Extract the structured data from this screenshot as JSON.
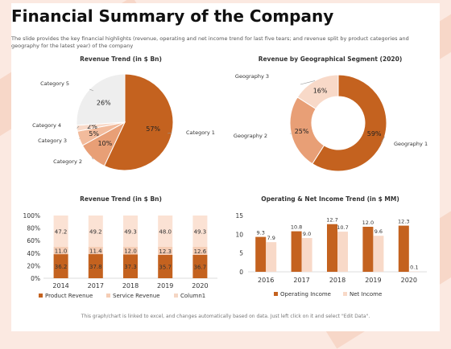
{
  "title": "Financial Summary of the Company",
  "subtitle": "The slide provides the key financial highlights (revenue, operating and net income trend for last five tears; and revenue split by product categories and geography for the latest year) of the company",
  "footer": "This graph/chart is linked to excel, and changes automatically based on data. Just left click on it and select \"Edit Data\".",
  "colors": {
    "orange": "#c4621f",
    "mid": "#e89f76",
    "light": "#f5cdb5",
    "pale": "#fbe2d4",
    "grey": "#eeeeee"
  },
  "chart_data": [
    {
      "type": "pie",
      "title": "Revenue Trend (in $ Bn)",
      "slices": [
        {
          "label": "Category 1",
          "value": 57,
          "display": "57%",
          "color": "#c4621f"
        },
        {
          "label": "Category 2",
          "value": 10,
          "display": "10%",
          "color": "#e89f76"
        },
        {
          "label": "Category 3",
          "value": 5,
          "display": "5%",
          "color": "#f2bb9c"
        },
        {
          "label": "Category 4",
          "value": 2,
          "display": "2%",
          "color": "#f8d9c8"
        },
        {
          "label": "Category 5",
          "value": 26,
          "display": "26%",
          "color": "#eeeeee"
        }
      ]
    },
    {
      "type": "pie",
      "title": "Revenue by Geographical Segment (2020)",
      "donut": true,
      "slices": [
        {
          "label": "Geography 1",
          "value": 59,
          "display": "59%",
          "color": "#c4621f"
        },
        {
          "label": "Geography 2",
          "value": 25,
          "display": "25%",
          "color": "#e89f76"
        },
        {
          "label": "Geography 3",
          "value": 16,
          "display": "16%",
          "color": "#f8d9c8"
        }
      ]
    },
    {
      "type": "bar",
      "stacked": true,
      "percent": true,
      "title": "Revenue Trend (in $ Bn)",
      "categories": [
        "2014",
        "2017",
        "2018",
        "2019",
        "2020"
      ],
      "y_ticks": [
        "0%",
        "20%",
        "40%",
        "60%",
        "80%",
        "100%"
      ],
      "series": [
        {
          "name": "Product Revenue",
          "values": [
            36.2,
            37.8,
            37.3,
            35.7,
            36.7
          ],
          "color": "#c4621f"
        },
        {
          "name": "Service Revenue",
          "values": [
            11.0,
            11.4,
            12.0,
            12.3,
            12.6
          ],
          "color": "#f5cdb5"
        },
        {
          "name": "Column1",
          "values": [
            47.2,
            49.2,
            49.3,
            48.0,
            49.3
          ],
          "color": "#fbe2d4"
        }
      ]
    },
    {
      "type": "bar",
      "title": "Operating & Net Income Trend (in $ MM)",
      "categories": [
        "2016",
        "2017",
        "2018",
        "2019",
        "2020"
      ],
      "ylim": [
        0,
        15
      ],
      "y_ticks": [
        0,
        5,
        10,
        15
      ],
      "series": [
        {
          "name": "Operating Income",
          "values": [
            9.3,
            10.8,
            12.7,
            12.0,
            12.3
          ],
          "color": "#c4621f"
        },
        {
          "name": "Net Income",
          "values": [
            7.9,
            9.0,
            10.7,
            9.6,
            0.1
          ],
          "color": "#f8d9c8"
        }
      ]
    }
  ]
}
